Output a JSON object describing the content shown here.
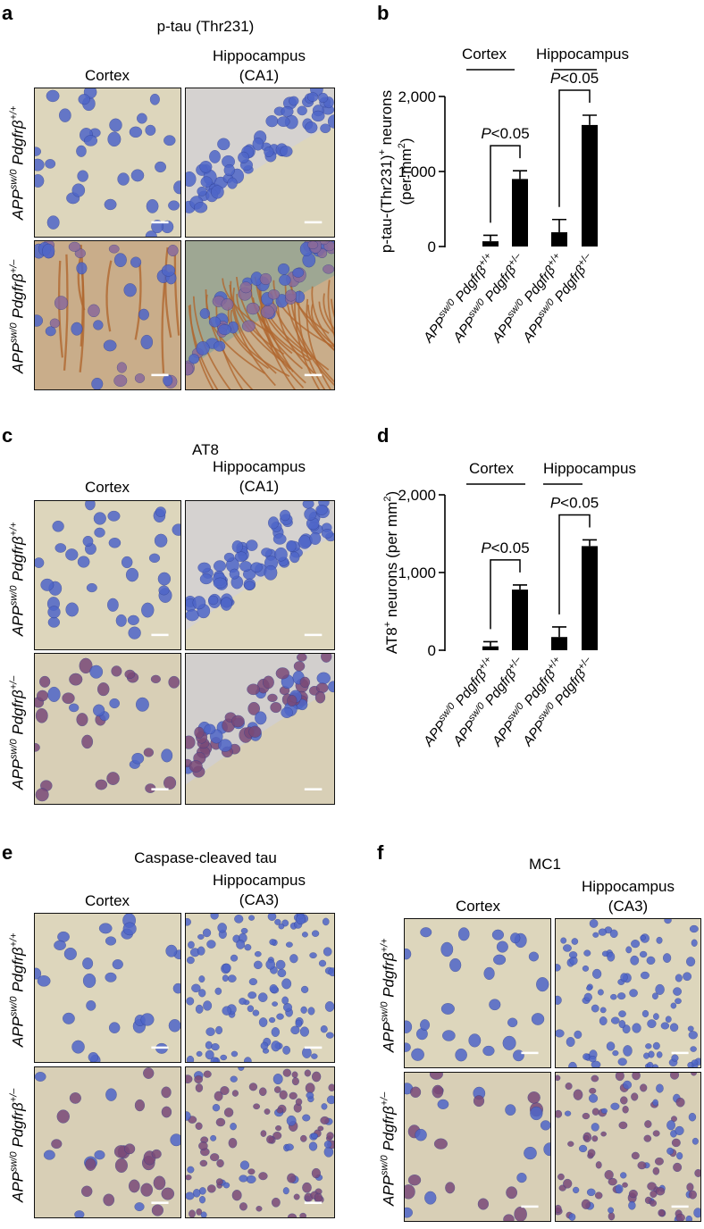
{
  "panels": {
    "a": {
      "letter": "a",
      "title": "p-tau (Thr231)",
      "col1": "Cortex",
      "col2_line1": "Hippocampus",
      "col2_line2": "(CA1)"
    },
    "b": {
      "letter": "b"
    },
    "c": {
      "letter": "c",
      "title": "AT8",
      "col1": "Cortex",
      "col2_line1": "Hippocampus",
      "col2_line2": "(CA1)"
    },
    "d": {
      "letter": "d"
    },
    "e": {
      "letter": "e",
      "title": "Caspase-cleaved tau",
      "col1": "Cortex",
      "col2_line1": "Hippocampus",
      "col2_line2": "(CA3)"
    },
    "f": {
      "letter": "f",
      "title": "MC1",
      "col1": "Cortex",
      "col2_line1": "Hippocampus",
      "col2_line2": "(CA3)"
    }
  },
  "row_labels": {
    "wt": {
      "base": "APP",
      "sup1": "sw/0",
      "gene": " Pdgfrβ",
      "sup2": "+/+"
    },
    "het": {
      "base": "APP",
      "sup1": "sw/0",
      "gene": " Pdgfrβ",
      "sup2": "+/–"
    }
  },
  "image_colors": {
    "background_control": "#ddd6bc",
    "nuclei_blue": "#4f66c8",
    "stain_brown": "#b0662e",
    "stain_purple": "#7a4a78"
  },
  "chart_data": [
    {
      "type": "bar",
      "panel": "b",
      "ylabel_main": "p-tau-(Thr231)",
      "ylabel_sup": "+",
      "ylabel_rest": " neurons",
      "ylabel_line2": "(per mm",
      "ylabel_line2_sup": "2",
      "ylabel_line2_end": ")",
      "ylim": [
        0,
        2000
      ],
      "yticks": [
        "0",
        "1,000",
        "2,000"
      ],
      "ytick_values": [
        0,
        1000,
        2000
      ],
      "groups": [
        "Cortex",
        "Hippocampus"
      ],
      "categories": [
        "APPsw/0 Pdgfrβ+/+",
        "APPsw/0 Pdgfrβ+/–",
        "APPsw/0 Pdgfrβ+/+",
        "APPsw/0 Pdgfrβ+/–"
      ],
      "values": [
        70,
        900,
        190,
        1620
      ],
      "errors": [
        80,
        110,
        170,
        130
      ],
      "bar_color": "#000000",
      "annotations": [
        "P<0.05",
        "P<0.05"
      ]
    },
    {
      "type": "bar",
      "panel": "d",
      "ylabel_main": "AT8",
      "ylabel_sup": "+",
      "ylabel_rest": " neurons (per mm",
      "ylabel_sup2": "2",
      "ylabel_end": ")",
      "ylim": [
        0,
        2000
      ],
      "yticks": [
        "0",
        "1,000",
        "2,000"
      ],
      "ytick_values": [
        0,
        1000,
        2000
      ],
      "groups": [
        "Cortex",
        "Hippocampus"
      ],
      "categories": [
        "APPsw/0 Pdgfrβ+/+",
        "APPsw/0 Pdgfrβ+/–",
        "APPsw/0 Pdgfrβ+/+",
        "APPsw/0 Pdgfrβ+/–"
      ],
      "values": [
        50,
        780,
        170,
        1340
      ],
      "errors": [
        60,
        60,
        130,
        80
      ],
      "bar_color": "#000000",
      "annotations": [
        "P<0.05",
        "P<0.05"
      ]
    }
  ]
}
